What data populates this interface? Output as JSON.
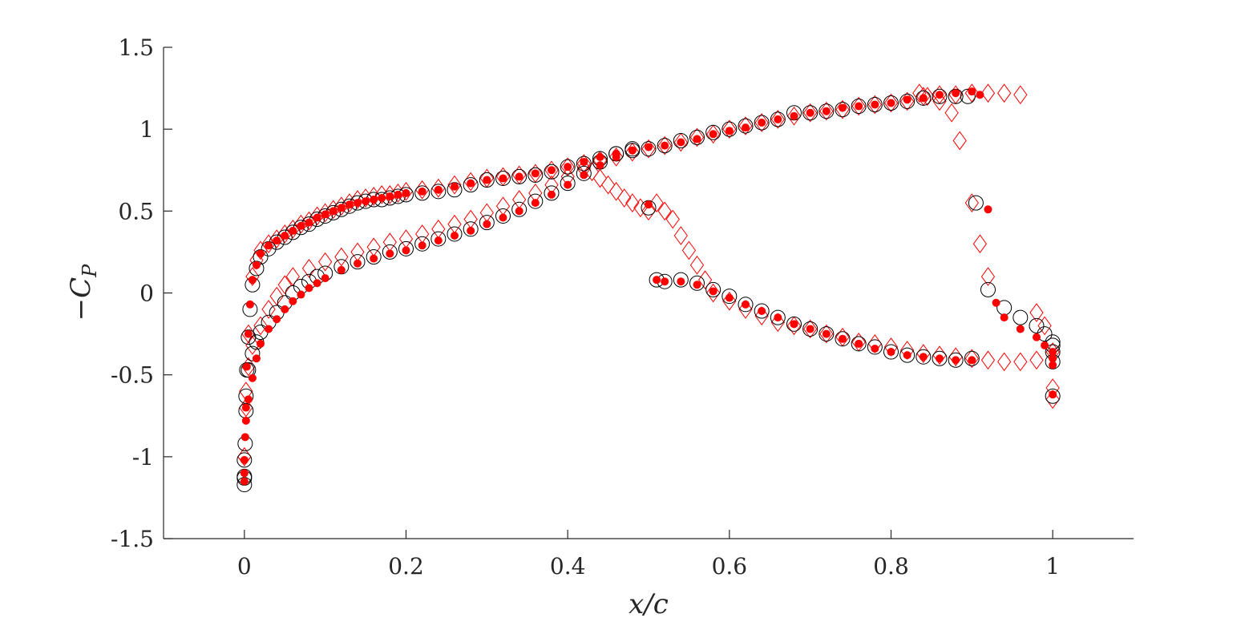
{
  "chart_data": {
    "type": "scatter",
    "xlabel": "x/c",
    "ylabel": "-C_P",
    "xlim": [
      -0.1,
      1.1
    ],
    "ylim": [
      -1.5,
      1.5
    ],
    "xticks": [
      0,
      0.2,
      0.4,
      0.6,
      0.8,
      1
    ],
    "xtick_labels": [
      "0",
      "0.2",
      "0.4",
      "0.6",
      "0.8",
      "1"
    ],
    "yticks": [
      -1.5,
      -1,
      -0.5,
      0,
      0.5,
      1,
      1.5
    ],
    "ytick_labels": [
      "-1.5",
      "-1",
      "-0.5",
      "0",
      "0.5",
      "1",
      "1.5"
    ],
    "grid": false,
    "box": false,
    "series": [
      {
        "marker": "open-circle",
        "color": "#000000",
        "x": [
          0.0,
          0.0,
          0.0,
          0.001,
          0.002,
          0.003,
          0.005,
          0.007,
          0.01,
          0.015,
          0.02,
          0.03,
          0.04,
          0.05,
          0.06,
          0.07,
          0.08,
          0.09,
          0.1,
          0.11,
          0.12,
          0.13,
          0.14,
          0.15,
          0.16,
          0.17,
          0.18,
          0.19,
          0.2,
          0.22,
          0.24,
          0.26,
          0.28,
          0.3,
          0.32,
          0.34,
          0.36,
          0.38,
          0.4,
          0.42,
          0.44,
          0.46,
          0.48,
          0.5,
          0.52,
          0.54,
          0.56,
          0.58,
          0.6,
          0.62,
          0.64,
          0.66,
          0.68,
          0.7,
          0.72,
          0.74,
          0.76,
          0.78,
          0.8,
          0.82,
          0.84,
          0.86,
          0.88,
          0.895,
          0.0,
          0.002,
          0.005,
          0.01,
          0.015,
          0.02,
          0.03,
          0.04,
          0.05,
          0.06,
          0.07,
          0.08,
          0.09,
          0.1,
          0.12,
          0.14,
          0.16,
          0.18,
          0.2,
          0.22,
          0.24,
          0.26,
          0.28,
          0.3,
          0.32,
          0.34,
          0.36,
          0.38,
          0.4,
          0.42,
          0.44,
          0.46,
          0.48,
          0.5,
          0.51,
          0.52,
          0.54,
          0.56,
          0.58,
          0.6,
          0.62,
          0.64,
          0.66,
          0.68,
          0.7,
          0.72,
          0.74,
          0.76,
          0.78,
          0.8,
          0.82,
          0.84,
          0.86,
          0.88,
          0.9,
          0.905,
          0.92,
          0.94,
          0.96,
          0.98,
          0.99,
          1.0,
          1.0,
          1.0,
          1.0,
          1.0
        ],
        "y": [
          -1.17,
          -1.12,
          -1.02,
          -0.92,
          -0.72,
          -0.47,
          -0.27,
          -0.1,
          0.05,
          0.15,
          0.22,
          0.27,
          0.31,
          0.34,
          0.37,
          0.4,
          0.42,
          0.45,
          0.47,
          0.49,
          0.51,
          0.53,
          0.55,
          0.56,
          0.57,
          0.57,
          0.58,
          0.59,
          0.6,
          0.61,
          0.62,
          0.63,
          0.66,
          0.69,
          0.7,
          0.71,
          0.72,
          0.74,
          0.77,
          0.79,
          0.82,
          0.85,
          0.87,
          0.88,
          0.9,
          0.93,
          0.95,
          0.98,
          1.0,
          1.02,
          1.04,
          1.06,
          1.1,
          1.1,
          1.11,
          1.12,
          1.14,
          1.15,
          1.16,
          1.17,
          1.19,
          1.2,
          1.2,
          1.2,
          -1.13,
          -0.63,
          -0.47,
          -0.37,
          -0.3,
          -0.24,
          -0.18,
          -0.12,
          -0.06,
          0.0,
          0.04,
          0.07,
          0.1,
          0.12,
          0.16,
          0.19,
          0.22,
          0.25,
          0.27,
          0.3,
          0.33,
          0.36,
          0.39,
          0.43,
          0.47,
          0.51,
          0.56,
          0.61,
          0.67,
          0.73,
          0.8,
          0.85,
          0.88,
          0.52,
          0.08,
          0.07,
          0.08,
          0.06,
          0.02,
          -0.02,
          -0.07,
          -0.11,
          -0.15,
          -0.19,
          -0.22,
          -0.25,
          -0.28,
          -0.31,
          -0.33,
          -0.36,
          -0.38,
          -0.39,
          -0.4,
          -0.41,
          -0.4,
          0.55,
          0.02,
          -0.09,
          -0.15,
          -0.2,
          -0.25,
          -0.3,
          -0.32,
          -0.36,
          -0.42,
          -0.63
        ]
      },
      {
        "marker": "filled-circle",
        "color": "#ff0000",
        "x": [
          0.0,
          0.0,
          0.001,
          0.002,
          0.003,
          0.005,
          0.007,
          0.01,
          0.015,
          0.02,
          0.03,
          0.04,
          0.05,
          0.06,
          0.07,
          0.08,
          0.09,
          0.1,
          0.11,
          0.12,
          0.13,
          0.14,
          0.15,
          0.16,
          0.17,
          0.18,
          0.19,
          0.2,
          0.22,
          0.24,
          0.26,
          0.28,
          0.3,
          0.32,
          0.34,
          0.36,
          0.38,
          0.4,
          0.42,
          0.44,
          0.46,
          0.48,
          0.5,
          0.52,
          0.54,
          0.56,
          0.58,
          0.6,
          0.62,
          0.64,
          0.66,
          0.68,
          0.7,
          0.72,
          0.74,
          0.76,
          0.78,
          0.8,
          0.82,
          0.84,
          0.86,
          0.88,
          0.9,
          0.91,
          0.0,
          0.002,
          0.005,
          0.01,
          0.015,
          0.02,
          0.03,
          0.04,
          0.05,
          0.06,
          0.07,
          0.08,
          0.09,
          0.1,
          0.12,
          0.14,
          0.16,
          0.18,
          0.2,
          0.22,
          0.24,
          0.26,
          0.28,
          0.3,
          0.32,
          0.34,
          0.36,
          0.38,
          0.4,
          0.42,
          0.44,
          0.46,
          0.48,
          0.5,
          0.51,
          0.52,
          0.54,
          0.56,
          0.58,
          0.6,
          0.62,
          0.64,
          0.66,
          0.68,
          0.7,
          0.72,
          0.74,
          0.76,
          0.78,
          0.8,
          0.82,
          0.84,
          0.86,
          0.88,
          0.9,
          0.92,
          0.93,
          0.94,
          0.96,
          0.98,
          0.99,
          1.0,
          1.0,
          1.0,
          1.0
        ],
        "y": [
          -1.15,
          -1.02,
          -0.88,
          -0.7,
          -0.45,
          -0.25,
          -0.07,
          0.08,
          0.17,
          0.24,
          0.29,
          0.32,
          0.35,
          0.38,
          0.41,
          0.43,
          0.46,
          0.48,
          0.5,
          0.52,
          0.54,
          0.55,
          0.56,
          0.57,
          0.58,
          0.59,
          0.6,
          0.61,
          0.62,
          0.63,
          0.65,
          0.67,
          0.69,
          0.7,
          0.71,
          0.73,
          0.75,
          0.77,
          0.8,
          0.83,
          0.85,
          0.87,
          0.89,
          0.9,
          0.92,
          0.94,
          0.97,
          0.99,
          1.01,
          1.04,
          1.06,
          1.08,
          1.1,
          1.11,
          1.13,
          1.14,
          1.15,
          1.16,
          1.18,
          1.19,
          1.21,
          1.22,
          1.23,
          1.21,
          -1.1,
          -0.78,
          -0.65,
          -0.52,
          -0.4,
          -0.31,
          -0.22,
          -0.16,
          -0.1,
          -0.05,
          -0.01,
          0.03,
          0.06,
          0.09,
          0.14,
          0.18,
          0.21,
          0.24,
          0.26,
          0.29,
          0.32,
          0.35,
          0.38,
          0.42,
          0.46,
          0.5,
          0.55,
          0.6,
          0.66,
          0.72,
          0.78,
          0.83,
          0.87,
          0.54,
          0.08,
          0.07,
          0.07,
          0.05,
          0.01,
          -0.03,
          -0.07,
          -0.11,
          -0.15,
          -0.19,
          -0.22,
          -0.25,
          -0.28,
          -0.31,
          -0.34,
          -0.36,
          -0.38,
          -0.39,
          -0.4,
          -0.41,
          -0.41,
          0.51,
          -0.06,
          -0.15,
          -0.22,
          -0.27,
          -0.32,
          -0.36,
          -0.4,
          -0.44,
          -0.62
        ]
      },
      {
        "marker": "open-diamond",
        "color": "#ff0000",
        "x": [
          0.0,
          0.002,
          0.005,
          0.01,
          0.015,
          0.02,
          0.03,
          0.04,
          0.05,
          0.06,
          0.07,
          0.08,
          0.09,
          0.1,
          0.11,
          0.12,
          0.13,
          0.14,
          0.15,
          0.16,
          0.17,
          0.18,
          0.19,
          0.2,
          0.22,
          0.24,
          0.26,
          0.28,
          0.3,
          0.32,
          0.34,
          0.36,
          0.38,
          0.4,
          0.42,
          0.44,
          0.46,
          0.48,
          0.5,
          0.52,
          0.54,
          0.56,
          0.58,
          0.6,
          0.62,
          0.64,
          0.66,
          0.68,
          0.7,
          0.72,
          0.74,
          0.76,
          0.78,
          0.8,
          0.82,
          0.84,
          0.86,
          0.88,
          0.9,
          0.92,
          0.94,
          0.96,
          0.98,
          0.99,
          1.0,
          1.0,
          0.835,
          0.845,
          0.86,
          0.875,
          0.885,
          0.9,
          0.91,
          0.92,
          0.0,
          0.002,
          0.005,
          0.01,
          0.02,
          0.03,
          0.04,
          0.05,
          0.06,
          0.08,
          0.1,
          0.12,
          0.14,
          0.16,
          0.18,
          0.2,
          0.22,
          0.24,
          0.26,
          0.28,
          0.3,
          0.32,
          0.34,
          0.36,
          0.38,
          0.4,
          0.42,
          0.43,
          0.44,
          0.45,
          0.46,
          0.47,
          0.48,
          0.49,
          0.5,
          0.51,
          0.52,
          0.53,
          0.54,
          0.55,
          0.56,
          0.57,
          0.58,
          0.6,
          0.62,
          0.64,
          0.66,
          0.68,
          0.7,
          0.72,
          0.74,
          0.76,
          0.78,
          0.8,
          0.82,
          0.84,
          0.86,
          0.88,
          0.9,
          0.92,
          0.94,
          0.96,
          0.98,
          1.0
        ],
        "y": [
          -1.0,
          -0.6,
          -0.25,
          0.1,
          0.2,
          0.26,
          0.3,
          0.33,
          0.36,
          0.39,
          0.42,
          0.44,
          0.47,
          0.49,
          0.51,
          0.53,
          0.55,
          0.57,
          0.58,
          0.59,
          0.6,
          0.6,
          0.61,
          0.62,
          0.63,
          0.64,
          0.66,
          0.68,
          0.7,
          0.71,
          0.72,
          0.73,
          0.75,
          0.77,
          0.79,
          0.81,
          0.83,
          0.86,
          0.88,
          0.9,
          0.92,
          0.95,
          0.97,
          1.0,
          1.02,
          1.04,
          1.06,
          1.08,
          1.1,
          1.11,
          1.12,
          1.14,
          1.15,
          1.16,
          1.17,
          1.2,
          1.21,
          1.21,
          1.22,
          1.22,
          1.22,
          1.21,
          -0.12,
          -0.2,
          -0.65,
          -0.58,
          1.22,
          1.2,
          1.17,
          1.1,
          0.93,
          0.55,
          0.3,
          0.1,
          -1.0,
          -0.7,
          -0.45,
          -0.32,
          -0.2,
          -0.1,
          -0.02,
          0.05,
          0.1,
          0.15,
          0.19,
          0.22,
          0.25,
          0.28,
          0.31,
          0.33,
          0.36,
          0.39,
          0.42,
          0.45,
          0.49,
          0.53,
          0.57,
          0.61,
          0.66,
          0.71,
          0.76,
          0.74,
          0.7,
          0.66,
          0.62,
          0.58,
          0.55,
          0.52,
          0.5,
          0.55,
          0.5,
          0.45,
          0.35,
          0.26,
          0.17,
          0.08,
          0.0,
          -0.05,
          -0.1,
          -0.14,
          -0.18,
          -0.2,
          -0.22,
          -0.25,
          -0.27,
          -0.3,
          -0.31,
          -0.33,
          -0.35,
          -0.37,
          -0.38,
          -0.39,
          -0.4,
          -0.41,
          -0.42,
          -0.42,
          -0.41,
          -0.36
        ]
      }
    ]
  }
}
